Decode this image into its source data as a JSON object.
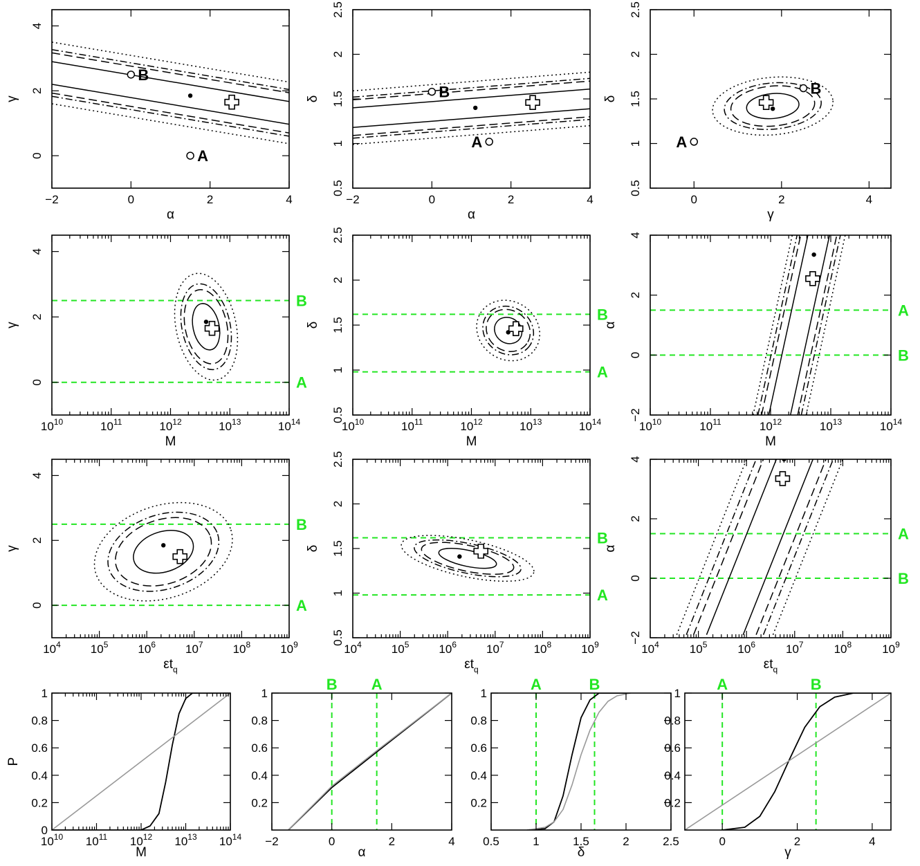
{
  "figure": {
    "symbols": {
      "alpha": "α",
      "gamma": "γ",
      "delta": "δ",
      "M": "M",
      "eps_tq": "εt",
      "eps_tq_sub": "q",
      "P": "P"
    }
  },
  "chart_data": [
    {
      "id": "p11",
      "type": "scatter",
      "xlabel": "α",
      "ylabel": "γ",
      "xlim": [
        -2,
        4
      ],
      "ylim": [
        -1,
        4.5
      ],
      "xlog": false,
      "xticks": [
        -2,
        0,
        2,
        4
      ],
      "yticks": [
        0,
        2,
        4
      ],
      "bands": {
        "center": [
          [
            -2,
            2.55
          ],
          [
            4,
            1.32
          ]
        ],
        "widths": {
          "solid": 0.35,
          "dashed": 0.62,
          "dotdash": 0.72,
          "dotted": 0.95
        }
      },
      "best_fit_dot": [
        1.5,
        1.85
      ],
      "cross": [
        2.55,
        1.65
      ],
      "points": [
        {
          "label": "A",
          "x": 1.5,
          "y": 0.0
        },
        {
          "label": "B",
          "x": 0.0,
          "y": 2.5
        }
      ]
    },
    {
      "id": "p12",
      "type": "scatter",
      "xlabel": "α",
      "ylabel": "δ",
      "xlim": [
        -2,
        4
      ],
      "ylim": [
        0.5,
        2.5
      ],
      "xlog": false,
      "xticks": [
        -2,
        0,
        2,
        4
      ],
      "yticks": [
        0.5,
        1,
        1.5,
        2,
        2.5
      ],
      "bands": {
        "center": [
          [
            -2,
            1.29
          ],
          [
            4,
            1.5
          ]
        ],
        "widths": {
          "solid": 0.11,
          "dashed": 0.2,
          "dotdash": 0.23,
          "dotted": 0.3
        }
      },
      "best_fit_dot": [
        1.1,
        1.4
      ],
      "cross": [
        2.55,
        1.46
      ],
      "points": [
        {
          "label": "A",
          "x": 1.45,
          "y": 1.02
        },
        {
          "label": "B",
          "x": 0.0,
          "y": 1.58
        }
      ]
    },
    {
      "id": "p13",
      "type": "scatter",
      "xlabel": "γ",
      "ylabel": "δ",
      "xlim": [
        -1,
        4.5
      ],
      "ylim": [
        0.5,
        2.5
      ],
      "xlog": false,
      "xticks": [
        0,
        2,
        4
      ],
      "yticks": [
        0.5,
        1,
        1.5,
        2,
        2.5
      ],
      "ellipses": [
        {
          "cx": 1.8,
          "cy": 1.42,
          "rx": 0.6,
          "ry": 0.14,
          "angle": -5
        }
      ],
      "best_fit_dot": [
        1.8,
        1.39
      ],
      "cross": [
        1.65,
        1.46
      ],
      "points": [
        {
          "label": "A",
          "x": 0.0,
          "y": 1.02
        },
        {
          "label": "B",
          "x": 2.5,
          "y": 1.62
        }
      ]
    },
    {
      "id": "p21",
      "type": "scatter",
      "xlabel": "M",
      "ylabel": "γ",
      "xlim": [
        10,
        14
      ],
      "ylim": [
        -1,
        4.5
      ],
      "xlog": true,
      "xticks": [
        10,
        11,
        12,
        13,
        14
      ],
      "yticks": [
        0,
        2,
        4
      ],
      "ellipses": [
        {
          "cx": 12.6,
          "cy": 1.7,
          "rx": 0.22,
          "ry": 0.72,
          "angle": -12
        }
      ],
      "best_fit_dot": [
        12.6,
        1.85
      ],
      "cross": [
        12.7,
        1.65
      ],
      "ref_lines": [
        {
          "axis": "y",
          "value": 2.5,
          "label": "B"
        },
        {
          "axis": "y",
          "value": 0.0,
          "label": "A"
        }
      ]
    },
    {
      "id": "p22",
      "type": "scatter",
      "xlabel": "M",
      "ylabel": "δ",
      "xlim": [
        10,
        14
      ],
      "ylim": [
        0.5,
        2.5
      ],
      "xlog": true,
      "xticks": [
        10,
        11,
        12,
        13,
        14
      ],
      "yticks": [
        0.5,
        1,
        1.5,
        2,
        2.5
      ],
      "ellipses": [
        {
          "cx": 12.62,
          "cy": 1.44,
          "rx": 0.24,
          "ry": 0.14,
          "angle": 35
        }
      ],
      "best_fit_dot": [
        12.62,
        1.42
      ],
      "cross": [
        12.75,
        1.46
      ],
      "ref_lines": [
        {
          "axis": "y",
          "value": 1.62,
          "label": "B"
        },
        {
          "axis": "y",
          "value": 0.98,
          "label": "A"
        }
      ]
    },
    {
      "id": "p23",
      "type": "scatter",
      "xlabel": "M",
      "ylabel": "α",
      "xlim": [
        10,
        14
      ],
      "ylim": [
        -2,
        4
      ],
      "xlog": true,
      "xticks": [
        10,
        11,
        12,
        13,
        14
      ],
      "yticks": [
        -2,
        0,
        2,
        4
      ],
      "bands": {
        "center": [
          [
            12.15,
            -2
          ],
          [
            12.8,
            4
          ]
        ],
        "widths": {
          "solid": 0.18,
          "dashed": 0.3,
          "dotdash": 0.36,
          "dotted": 0.44
        },
        "vertical": true
      },
      "best_fit_dot": [
        12.72,
        3.35
      ],
      "cross": [
        12.7,
        2.55
      ],
      "ref_lines": [
        {
          "axis": "y",
          "value": 1.5,
          "label": "A"
        },
        {
          "axis": "y",
          "value": 0.0,
          "label": "B"
        }
      ]
    },
    {
      "id": "p31",
      "type": "scatter",
      "xlabel": "εt_q",
      "ylabel": "γ",
      "xlim": [
        4,
        9
      ],
      "ylim": [
        -1,
        4.5
      ],
      "xlog": true,
      "xticks": [
        4,
        5,
        6,
        7,
        8,
        9
      ],
      "yticks": [
        0,
        2,
        4
      ],
      "ellipses": [
        {
          "cx": 6.35,
          "cy": 1.65,
          "rx": 0.65,
          "ry": 0.62,
          "angle": -18
        }
      ],
      "best_fit_dot": [
        6.35,
        1.85
      ],
      "cross": [
        6.7,
        1.5
      ],
      "ref_lines": [
        {
          "axis": "y",
          "value": 2.5,
          "label": "B"
        },
        {
          "axis": "y",
          "value": 0.0,
          "label": "A"
        }
      ]
    },
    {
      "id": "p32",
      "type": "scatter",
      "xlabel": "εt_q",
      "ylabel": "δ",
      "xlim": [
        4,
        9
      ],
      "ylim": [
        0.5,
        2.5
      ],
      "xlog": true,
      "xticks": [
        4,
        5,
        6,
        7,
        8,
        9
      ],
      "yticks": [
        0.5,
        1,
        1.5,
        2,
        2.5
      ],
      "ellipses": [
        {
          "cx": 6.42,
          "cy": 1.39,
          "rx": 0.62,
          "ry": 0.09,
          "angle": 12
        }
      ],
      "best_fit_dot": [
        6.25,
        1.41
      ],
      "cross": [
        6.7,
        1.47
      ],
      "ref_lines": [
        {
          "axis": "y",
          "value": 1.62,
          "label": "B"
        },
        {
          "axis": "y",
          "value": 0.98,
          "label": "A"
        }
      ]
    },
    {
      "id": "p33",
      "type": "scatter",
      "xlabel": "εt_q",
      "ylabel": "α",
      "xlim": [
        4,
        9
      ],
      "ylim": [
        -2,
        4
      ],
      "xlog": true,
      "xticks": [
        4,
        5,
        6,
        7,
        8,
        9
      ],
      "yticks": [
        -2,
        0,
        2,
        4
      ],
      "bands": {
        "center": [
          [
            5.55,
            -1.9
          ],
          [
            7.0,
            4
          ]
        ],
        "widths": {
          "solid": 0.38,
          "dashed": 0.65,
          "dotdash": 0.8,
          "dotted": 1.0
        },
        "vertical": true
      },
      "best_fit_dot": [
        6.78,
        4.0
      ],
      "cross": [
        6.75,
        3.35
      ],
      "ref_lines": [
        {
          "axis": "y",
          "value": 1.5,
          "label": "A"
        },
        {
          "axis": "y",
          "value": 0.0,
          "label": "B"
        }
      ]
    },
    {
      "id": "c1",
      "type": "line",
      "xlabel": "M",
      "ylabel": "P",
      "xlim": [
        10,
        14
      ],
      "ylim": [
        0,
        1
      ],
      "xlog": true,
      "xticks": [
        10,
        11,
        12,
        13,
        14
      ],
      "yticks": [
        0,
        0.2,
        0.4,
        0.6,
        0.8,
        1
      ],
      "series": [
        {
          "role": "posterior",
          "x": [
            10,
            12.0,
            12.2,
            12.4,
            12.55,
            12.7,
            12.85,
            13.0,
            13.15,
            13.3,
            14
          ],
          "y": [
            0,
            0.0,
            0.03,
            0.12,
            0.35,
            0.62,
            0.85,
            0.96,
            1.0,
            1.0,
            1.0
          ]
        },
        {
          "role": "prior",
          "x": [
            10,
            14
          ],
          "y": [
            0,
            1
          ]
        }
      ]
    },
    {
      "id": "c2",
      "type": "line",
      "xlabel": "α",
      "ylabel": "",
      "xlim": [
        -2,
        4
      ],
      "ylim": [
        0,
        1
      ],
      "xlog": false,
      "xticks": [
        -2,
        0,
        2,
        4
      ],
      "yticks": [
        0.2,
        0.4,
        0.6,
        0.8,
        1
      ],
      "series": [
        {
          "role": "posterior",
          "x": [
            -1.45,
            0,
            1.5,
            4
          ],
          "y": [
            0.0,
            0.31,
            0.57,
            1.0
          ]
        },
        {
          "role": "prior",
          "x": [
            -1.45,
            0,
            1.5,
            4
          ],
          "y": [
            0.0,
            0.32,
            0.58,
            1.0
          ]
        }
      ],
      "ref_lines": [
        {
          "axis": "x",
          "value": 0.0,
          "label": "B"
        },
        {
          "axis": "x",
          "value": 1.5,
          "label": "A"
        }
      ]
    },
    {
      "id": "c3",
      "type": "line",
      "xlabel": "δ",
      "ylabel": "",
      "xlim": [
        0.5,
        2.5
      ],
      "ylim": [
        0,
        1
      ],
      "xlog": false,
      "xticks": [
        0.5,
        1,
        1.5,
        2,
        2.5
      ],
      "yticks": [
        0.2,
        0.4,
        0.6,
        0.8,
        1
      ],
      "series": [
        {
          "role": "posterior",
          "x": [
            0.9,
            1.1,
            1.2,
            1.3,
            1.4,
            1.5,
            1.6,
            1.7,
            2.05
          ],
          "y": [
            0.0,
            0.01,
            0.06,
            0.25,
            0.55,
            0.82,
            0.95,
            1.0,
            1.0
          ]
        },
        {
          "role": "prior",
          "x": [
            0.9,
            1.1,
            1.2,
            1.3,
            1.4,
            1.5,
            1.6,
            1.7,
            1.8,
            1.9,
            2.05
          ],
          "y": [
            0.0,
            0.02,
            0.06,
            0.15,
            0.33,
            0.55,
            0.73,
            0.86,
            0.94,
            0.98,
            1.0
          ]
        }
      ],
      "ref_lines": [
        {
          "axis": "x",
          "value": 1.0,
          "label": "A"
        },
        {
          "axis": "x",
          "value": 1.65,
          "label": "B"
        }
      ]
    },
    {
      "id": "c4",
      "type": "line",
      "xlabel": "γ",
      "ylabel": "",
      "xlim": [
        -1,
        4.5
      ],
      "ylim": [
        0,
        1
      ],
      "xlog": false,
      "xticks": [
        0,
        2,
        4
      ],
      "yticks": [
        0.2,
        0.4,
        0.6,
        0.8,
        1
      ],
      "series": [
        {
          "role": "posterior",
          "x": [
            0,
            0.6,
            1.0,
            1.4,
            1.8,
            2.2,
            2.6,
            3.0,
            3.5,
            4.5
          ],
          "y": [
            0,
            0.02,
            0.1,
            0.28,
            0.52,
            0.75,
            0.9,
            0.97,
            1.0,
            1.0
          ]
        },
        {
          "role": "prior",
          "x": [
            -1,
            4.5
          ],
          "y": [
            0,
            1
          ]
        }
      ],
      "ref_lines": [
        {
          "axis": "x",
          "value": 0.0,
          "label": "A"
        },
        {
          "axis": "x",
          "value": 2.5,
          "label": "B"
        }
      ]
    }
  ]
}
